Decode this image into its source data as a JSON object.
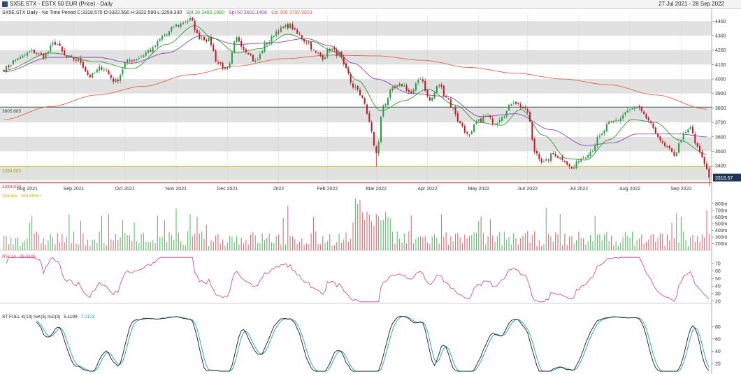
{
  "window": {
    "title": "SX5E.STX - ESTX 50 EUR (Price) - Daily",
    "date_range": "27 Jul 2021 - 28 Sep 2022"
  },
  "chart_data": [
    {
      "type": "candlestick",
      "legend": {
        "ohlc": "SX5E.STX Daily  -  No Time Period   C:3318.570 O:3322.590 H:3322.590 L:3259.330",
        "sma20": "Spl 20 3482.1080",
        "sma50": "Spl 50 3602.1408",
        "sma200": "Spl 200 3792.5829"
      },
      "y_ticks": [
        3400,
        3500,
        3600,
        3700,
        3800,
        3900,
        4000,
        4100,
        4200,
        4300,
        4400
      ],
      "ylim": [
        3280,
        4440
      ],
      "grid_bands": true,
      "x_ticks": [
        "Aug 2021",
        "Sep 2021",
        "Oct 2021",
        "Nov 2021",
        "Dec 2021",
        "2022",
        "Feb 2022",
        "Mar 2022",
        "Apr 2022",
        "May 2022",
        "Jun 2022",
        "Jul 2022",
        "Aug 2022",
        "Sep 2022"
      ],
      "x_tick_bars": [
        10,
        30,
        52,
        74,
        96,
        118,
        139,
        160,
        182,
        204,
        225,
        247,
        269,
        291
      ],
      "horizontal_lines": [
        {
          "label": "3805.685",
          "value": 3805.685,
          "color": "#2f4f4f"
        },
        {
          "label": "3394.685",
          "value": 3394.685,
          "color": "#d7c900"
        },
        {
          "label": "3283.970",
          "value": 3283.97,
          "color": "#d42a2a"
        }
      ],
      "last_price": {
        "label": "3318.57",
        "value": 3318.57
      },
      "anchors": [
        [
          0,
          4070
        ],
        [
          6,
          4140
        ],
        [
          12,
          4190
        ],
        [
          17,
          4160
        ],
        [
          22,
          4250
        ],
        [
          27,
          4150
        ],
        [
          32,
          4130
        ],
        [
          37,
          4020
        ],
        [
          42,
          4080
        ],
        [
          48,
          3985
        ],
        [
          53,
          4120
        ],
        [
          58,
          4150
        ],
        [
          63,
          4200
        ],
        [
          69,
          4300
        ],
        [
          74,
          4370
        ],
        [
          80,
          4410
        ],
        [
          84,
          4290
        ],
        [
          88,
          4270
        ],
        [
          92,
          4110
        ],
        [
          96,
          4060
        ],
        [
          100,
          4280
        ],
        [
          104,
          4200
        ],
        [
          108,
          4120
        ],
        [
          113,
          4250
        ],
        [
          118,
          4340
        ],
        [
          123,
          4370
        ],
        [
          126,
          4310
        ],
        [
          130,
          4260
        ],
        [
          134,
          4180
        ],
        [
          137,
          4150
        ],
        [
          140,
          4210
        ],
        [
          144,
          4170
        ],
        [
          147,
          4060
        ],
        [
          150,
          3950
        ],
        [
          154,
          3880
        ],
        [
          157,
          3700
        ],
        [
          160,
          3480
        ],
        [
          163,
          3820
        ],
        [
          167,
          3930
        ],
        [
          171,
          3960
        ],
        [
          175,
          3900
        ],
        [
          179,
          4010
        ],
        [
          183,
          3850
        ],
        [
          187,
          3960
        ],
        [
          190,
          3880
        ],
        [
          193,
          3790
        ],
        [
          196,
          3690
        ],
        [
          200,
          3600
        ],
        [
          203,
          3700
        ],
        [
          207,
          3740
        ],
        [
          211,
          3700
        ],
        [
          215,
          3760
        ],
        [
          219,
          3850
        ],
        [
          222,
          3810
        ],
        [
          225,
          3770
        ],
        [
          228,
          3500
        ],
        [
          232,
          3420
        ],
        [
          236,
          3480
        ],
        [
          240,
          3450
        ],
        [
          244,
          3380
        ],
        [
          248,
          3450
        ],
        [
          252,
          3500
        ],
        [
          256,
          3600
        ],
        [
          260,
          3690
        ],
        [
          264,
          3720
        ],
        [
          268,
          3780
        ],
        [
          272,
          3800
        ],
        [
          276,
          3730
        ],
        [
          280,
          3630
        ],
        [
          284,
          3530
        ],
        [
          288,
          3480
        ],
        [
          292,
          3610
        ],
        [
          295,
          3660
        ],
        [
          298,
          3520
        ],
        [
          301,
          3420
        ],
        [
          303,
          3320
        ]
      ],
      "sma_anchors": {
        "sma20": [
          [
            0,
            4060
          ],
          [
            20,
            4180
          ],
          [
            40,
            4120
          ],
          [
            55,
            4070
          ],
          [
            70,
            4240
          ],
          [
            82,
            4370
          ],
          [
            90,
            4280
          ],
          [
            100,
            4180
          ],
          [
            110,
            4210
          ],
          [
            122,
            4310
          ],
          [
            132,
            4260
          ],
          [
            142,
            4190
          ],
          [
            152,
            3990
          ],
          [
            162,
            3780
          ],
          [
            172,
            3850
          ],
          [
            182,
            3930
          ],
          [
            194,
            3820
          ],
          [
            204,
            3700
          ],
          [
            214,
            3680
          ],
          [
            222,
            3790
          ],
          [
            232,
            3610
          ],
          [
            242,
            3450
          ],
          [
            250,
            3440
          ],
          [
            260,
            3580
          ],
          [
            270,
            3720
          ],
          [
            280,
            3700
          ],
          [
            290,
            3580
          ],
          [
            302,
            3480
          ]
        ],
        "sma50": [
          [
            0,
            4050
          ],
          [
            20,
            4150
          ],
          [
            40,
            4150
          ],
          [
            55,
            4110
          ],
          [
            70,
            4180
          ],
          [
            85,
            4300
          ],
          [
            100,
            4240
          ],
          [
            115,
            4250
          ],
          [
            130,
            4280
          ],
          [
            140,
            4230
          ],
          [
            150,
            4110
          ],
          [
            160,
            4000
          ],
          [
            175,
            3900
          ],
          [
            190,
            3880
          ],
          [
            205,
            3740
          ],
          [
            220,
            3760
          ],
          [
            235,
            3650
          ],
          [
            250,
            3540
          ],
          [
            262,
            3560
          ],
          [
            272,
            3620
          ],
          [
            290,
            3620
          ],
          [
            302,
            3600
          ]
        ],
        "sma200": [
          [
            0,
            3720
          ],
          [
            20,
            3810
          ],
          [
            40,
            3890
          ],
          [
            60,
            3950
          ],
          [
            80,
            4030
          ],
          [
            100,
            4090
          ],
          [
            120,
            4140
          ],
          [
            140,
            4165
          ],
          [
            160,
            4160
          ],
          [
            180,
            4130
          ],
          [
            200,
            4080
          ],
          [
            220,
            4040
          ],
          [
            240,
            4000
          ],
          [
            260,
            3960
          ],
          [
            280,
            3890
          ],
          [
            302,
            3792
          ]
        ]
      }
    },
    {
      "type": "bar",
      "title": "Volume",
      "value_label": "164.694m",
      "y_ticks": [
        "200m",
        "300m",
        "400m",
        "500m",
        "600m",
        "700m",
        "800m"
      ],
      "y_tick_values": [
        200,
        300,
        400,
        500,
        600,
        700,
        800
      ],
      "ylim": [
        100,
        880
      ],
      "unit": "m"
    },
    {
      "type": "line",
      "title": "RSI 14",
      "value_label": "29.0106",
      "color": "#d43f6f",
      "y_ticks": [
        20,
        30,
        40,
        50,
        60,
        70
      ],
      "ylim": [
        17,
        80
      ]
    },
    {
      "type": "line",
      "title": "ST FULL K(14),%K(5),%D(3)",
      "value_label_k": "5.1199",
      "value_label_d": "7.2173",
      "y_ticks": [
        20,
        40,
        60,
        80
      ],
      "ylim": [
        6,
        100
      ]
    }
  ]
}
